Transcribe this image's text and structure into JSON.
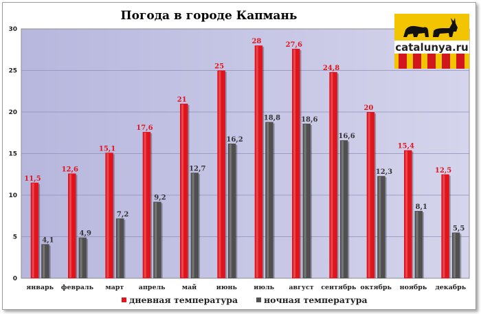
{
  "chart_data": {
    "type": "bar",
    "title": "Погода в городе Капмань",
    "categories": [
      "январь",
      "февраль",
      "март",
      "апрель",
      "май",
      "июнь",
      "июль",
      "август",
      "сентябрь",
      "октябрь",
      "ноябрь",
      "декабрь"
    ],
    "series": [
      {
        "name": "дневная температура",
        "color": "#e0141c",
        "values": [
          11.5,
          12.6,
          15.1,
          17.6,
          21,
          25,
          28,
          27.6,
          24.8,
          20,
          15.4,
          12.5
        ],
        "labels": [
          "11,5",
          "12,6",
          "15,1",
          "17,6",
          "21",
          "25",
          "28",
          "27,6",
          "24,8",
          "20",
          "15,4",
          "12,5"
        ]
      },
      {
        "name": "ночная температура",
        "color": "#505050",
        "values": [
          4.1,
          4.9,
          7.2,
          9.2,
          12.7,
          16.2,
          18.8,
          18.6,
          16.6,
          12.3,
          8.1,
          5.5
        ],
        "labels": [
          "4,1",
          "4,9",
          "7,2",
          "9,2",
          "12,7",
          "16,2",
          "18,8",
          "18,6",
          "16,6",
          "12,3",
          "8,1",
          "5,5"
        ]
      }
    ],
    "ylim": [
      0,
      30
    ],
    "yticks": [
      0,
      5,
      10,
      15,
      20,
      25,
      30
    ],
    "grid": true,
    "legend_position": "bottom",
    "plot_background": "#c4c4e4"
  },
  "logo": {
    "text": "catalunya.ru",
    "icon": "bear-and-donkey-icon",
    "colors": {
      "yellow": "#f3c400",
      "red": "#d1161e"
    }
  }
}
